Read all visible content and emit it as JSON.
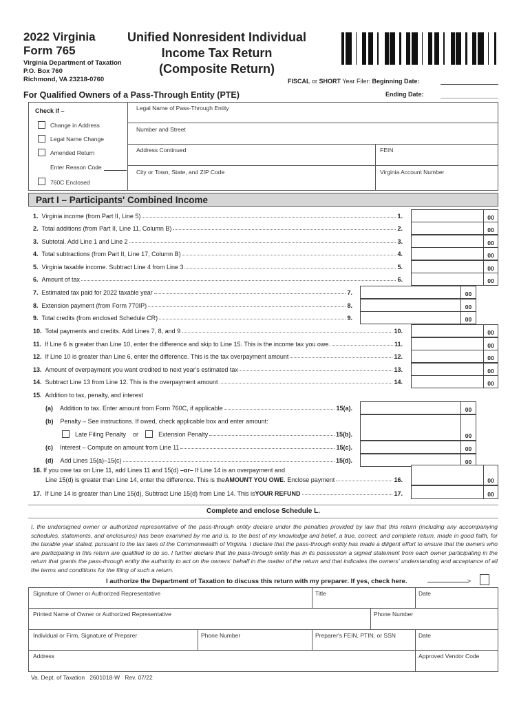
{
  "header": {
    "year_state": "2022 Virginia",
    "form_number": "Form 765",
    "department": "Virginia Department of Taxation",
    "po_box": "P.O. Box 760",
    "city": "Richmond, VA 23218-0760",
    "title_lines": [
      "Unified Nonresident Individual",
      "Income Tax Return",
      "(Composite Return)"
    ],
    "subtitle": "For Qualified Owners of a Pass-Through Entity (PTE)",
    "filer_fiscal": "FISCAL",
    "filer_or": " or ",
    "filer_short": "SHORT",
    "filer_rest": " Year Filer: ",
    "beginning_date_label": "Beginning Date:",
    "ending_date_label": "Ending Date:"
  },
  "check_if": {
    "title": "Check if –",
    "change_address": "Change in Address",
    "legal_name_change": "Legal Name Change",
    "amended_return": "Amended Return",
    "reason_code": "Enter Reason Code",
    "enclosed_760c": "760C Enclosed"
  },
  "entity_fields": {
    "legal_name": "Legal Name of Pass-Through Entity",
    "street": "Number and Street",
    "address_continued": "Address Continued",
    "fein": "FEIN",
    "city_state_zip": "City or Town, State, and ZIP Code",
    "va_account": "Virginia Account Number"
  },
  "part1": {
    "title": "Part I – Participants' Combined Income",
    "cents": "00",
    "lines": [
      {
        "num": "1.",
        "text": "Virginia income (from Part II, Line 5)",
        "ref": "1."
      },
      {
        "num": "2.",
        "text": "Total additions (from Part II, Line 11, Column B)",
        "ref": "2."
      },
      {
        "num": "3.",
        "text": "Subtotal. Add Line 1 and Line 2",
        "ref": "3."
      },
      {
        "num": "4.",
        "text": "Total subtractions (from Part II, Line 17, Column B)",
        "ref": "4."
      },
      {
        "num": "5.",
        "text": "Virginia taxable income. Subtract Line 4 from Line 3",
        "ref": "5."
      },
      {
        "num": "6.",
        "text": "Amount of tax",
        "ref": "6."
      },
      {
        "num": "7.",
        "text": "Estimated tax paid for 2022 taxable year",
        "ref": "7."
      },
      {
        "num": "8.",
        "text": "Extension payment (from Form 770IP)",
        "ref": "8."
      },
      {
        "num": "9.",
        "text": "Total credits (from enclosed Schedule CR)",
        "ref": "9."
      },
      {
        "num": "10.",
        "text": "Total payments and credits. Add Lines 7, 8, and 9",
        "ref": "10."
      },
      {
        "num": "11.",
        "text": "If Line 6 is greater than Line 10, enter the difference and skip to Line 15. This is the income tax you owe.",
        "ref": "11."
      },
      {
        "num": "12.",
        "text": "If Line 10 is greater than Line 6, enter the difference. This is the tax overpayment amount",
        "ref": "12."
      },
      {
        "num": "13.",
        "text": "Amount of overpayment you want credited to next year's estimated tax",
        "ref": "13."
      },
      {
        "num": "14.",
        "text": "Subtract Line 13 from Line 12. This is the overpayment amount",
        "ref": "14."
      },
      {
        "num": "15.",
        "text": "Addition to tax, penalty, and interest",
        "ref": ""
      },
      {
        "num": "(a)",
        "text": "Addition to tax. Enter amount from Form 760C, if applicable",
        "ref": "15(a)."
      },
      {
        "num": "(b)",
        "text": "Penalty – See instructions. If owed, check applicable box and enter amount:",
        "ref": ""
      },
      {
        "num": "",
        "text": "Extension Penalty",
        "ref": "15(b).",
        "pre_check": "Late Filing Penalty",
        "or": "or"
      },
      {
        "num": "(c)",
        "text": "Interest – Compute on amount from Line 11",
        "ref": "15(c)."
      },
      {
        "num": "(d)",
        "text": "Add Lines 15(a)–15(c)",
        "ref": "15(d)."
      }
    ],
    "line16": {
      "num": "16.",
      "row1_a": "If you owe tax on Line 11, add Lines 11 and 15(d) ",
      "row1_or": "–or–",
      "row1_b": " If Line 14 is an overpayment and",
      "row2_a": "Line 15(d) is greater than Line 14, enter the difference. This is the ",
      "row2_bold": "AMOUNT YOU OWE",
      "row2_b": ". Enclose payment",
      "ref": "16."
    },
    "line17": {
      "num": "17.",
      "text_a": "If Line 14 is greater than Line 15(d), Subtract Line 15(d) from Line 14. This is ",
      "text_bold": "YOUR REFUND",
      "ref": "17."
    }
  },
  "schedule_l": "Complete and enclose Schedule L.",
  "declaration": "I, the undersigned owner or authorized representative of the pass-through entity declare under the penalties provided by law that this return (including any accompanying schedules, statements, and enclosures) has been examined by me and is, to the best of my knowledge and belief, a true, correct, and complete return, made in good faith, for the taxable year stated, pursuant to the tax laws of the Commonwealth of Virginia. I declare that the pass-through entity has made a diligent effort to ensure that the owners who are participating in this return are qualified to do so. I further declare that the pass-through entity has in its possession a signed statement from each owner participating in the return that grants the pass-through entity the authority to act on the owners' behalf in the matter of the return and that indicates the owners' understanding and acceptance of all the terms and conditions for the filing of such a return.",
  "authorize": "I authorize the Department of Taxation to discuss this return with my preparer. If yes, check here.",
  "signature": {
    "sig_owner": "Signature of Owner or Authorized Representative",
    "title": "Title",
    "date": "Date",
    "printed_name": "Printed Name of Owner or Authorized Representative",
    "phone": "Phone Number",
    "preparer_sig": "Individual or Firm, Signature of Preparer",
    "preparer_phone": "Phone Number",
    "preparer_id": "Preparer's FEIN, PTIN, or SSN",
    "preparer_date": "Date",
    "address": "Address",
    "vendor_code": "Approved Vendor Code"
  },
  "footer": "Va. Dept. of Taxation   2601018-W   Rev. 07/22"
}
